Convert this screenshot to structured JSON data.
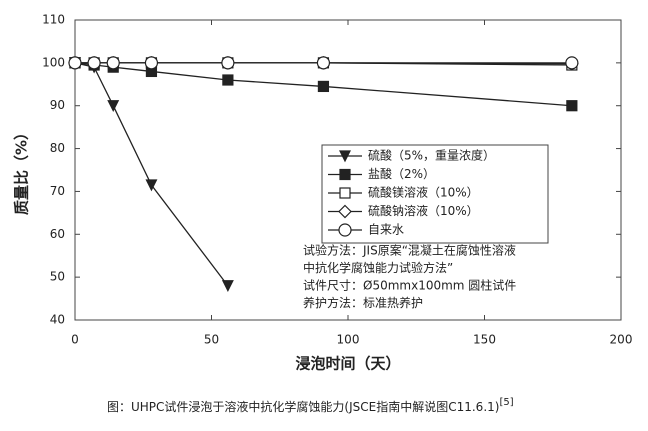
{
  "chart_data": {
    "type": "line",
    "y_label": "质量比（%）",
    "x_label": "浸泡时间（天）",
    "xlim": [
      0,
      200
    ],
    "xticks": [
      0,
      50,
      100,
      150,
      200
    ],
    "ylim": [
      40,
      110
    ],
    "yticks": [
      40,
      50,
      60,
      70,
      80,
      90,
      100,
      110
    ],
    "series": [
      {
        "name": "硫酸（5%，重量浓度）",
        "color": "#222222",
        "marker": "triangle-down",
        "filled": true,
        "x": [
          0,
          7,
          14,
          28,
          56
        ],
        "values": [
          100,
          99,
          90,
          71.5,
          48
        ]
      },
      {
        "name": "盐酸（2%）",
        "color": "#222222",
        "marker": "square",
        "filled": true,
        "x": [
          0,
          7,
          14,
          28,
          56,
          91,
          182
        ],
        "values": [
          100,
          99.5,
          99,
          98,
          96,
          94.5,
          90
        ]
      },
      {
        "name": "硫酸镁溶液（10%）",
        "color": "#222222",
        "marker": "square",
        "filled": false,
        "x": [
          0,
          7,
          14,
          28,
          56,
          91,
          182
        ],
        "values": [
          100,
          100,
          100,
          100,
          100,
          100,
          99.5
        ]
      },
      {
        "name": "硫酸钠溶液（10%）",
        "color": "#222222",
        "marker": "diamond",
        "filled": false,
        "x": [
          0,
          7,
          14,
          28,
          56,
          91,
          182
        ],
        "values": [
          100,
          100,
          100,
          100,
          100,
          100,
          99.8
        ]
      },
      {
        "name": "自来水",
        "color": "#222222",
        "marker": "circle",
        "filled": false,
        "x": [
          0,
          7,
          14,
          28,
          56,
          91,
          182
        ],
        "values": [
          100,
          100,
          100,
          100,
          100,
          100,
          100
        ]
      }
    ],
    "annotations": [
      "试验方法：JIS原案“混凝土在腐蚀性溶液",
      "中抗化学腐蚀能力试验方法”",
      "试件尺寸：Ø50mmx100mm 圆柱试件",
      "养护方法：标准热养护"
    ],
    "caption": "图：UHPC试件浸泡于溶液中抗化学腐蚀能力(JSCE指南中解说图C11.6.1)",
    "caption_ref": "[5]"
  }
}
